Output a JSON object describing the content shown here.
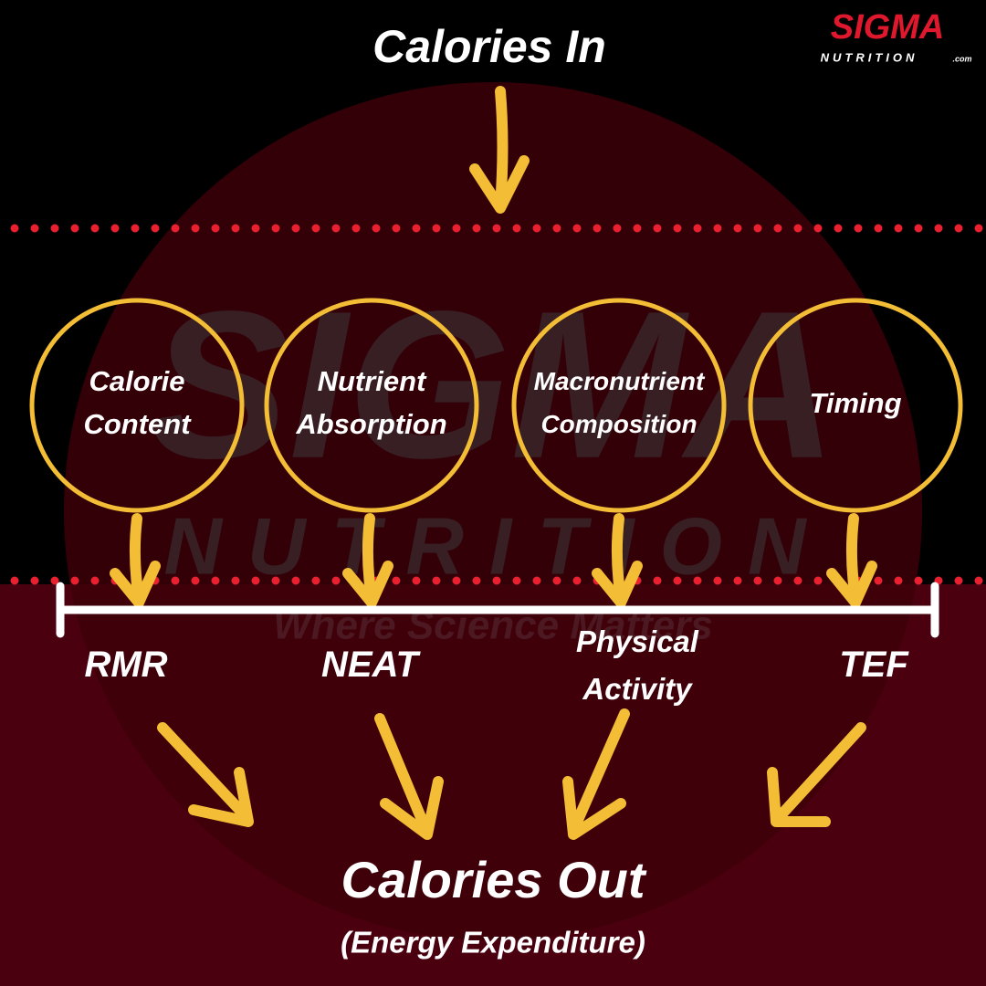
{
  "logo": {
    "name": "SIGMA",
    "sub": "NUTRITION",
    "suffix": ".com"
  },
  "watermark": {
    "name": "SIGMA",
    "sub": "NUTRITION",
    "tagline": "Where Science Matters"
  },
  "title": "Calories In",
  "nodes": [
    {
      "lines": [
        "Calorie",
        "Content"
      ]
    },
    {
      "lines": [
        "Nutrient",
        "Absorption"
      ]
    },
    {
      "lines": [
        "Macronutrient",
        "Composition"
      ]
    },
    {
      "lines": [
        "Timing"
      ]
    }
  ],
  "components": [
    {
      "lines": [
        "RMR"
      ]
    },
    {
      "lines": [
        "NEAT"
      ]
    },
    {
      "lines": [
        "Physical",
        "Activity"
      ]
    },
    {
      "lines": [
        "TEF"
      ]
    }
  ],
  "footer": {
    "title": "Calories Out",
    "subtitle": "(Energy Expenditure)"
  }
}
